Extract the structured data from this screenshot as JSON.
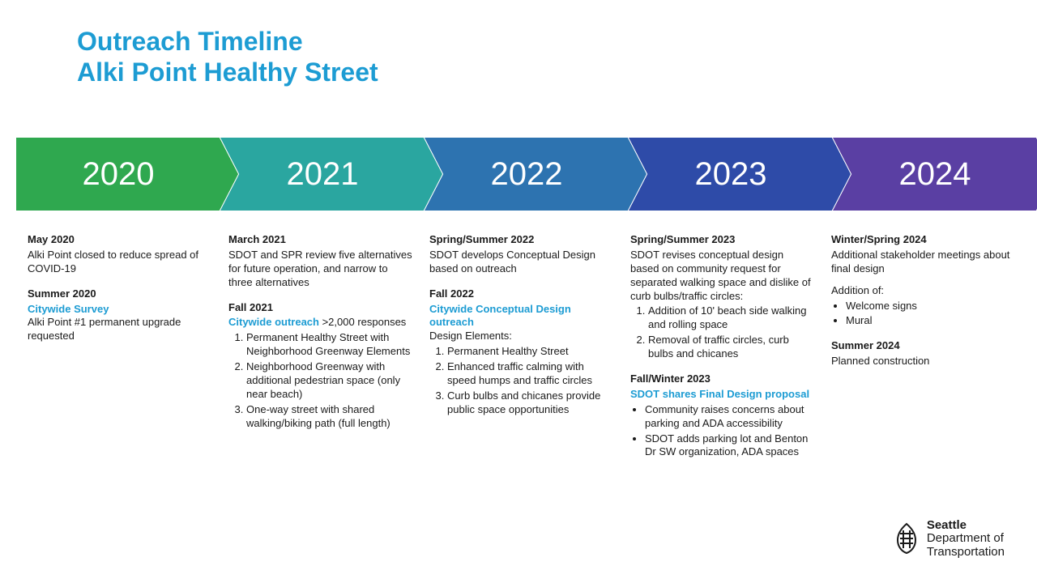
{
  "title": {
    "line1": "Outreach Timeline",
    "line2": "Alki Point Healthy Street",
    "color": "#1d9cd3",
    "fontsize": 32
  },
  "chevrons": {
    "height": 90,
    "label_fontsize": 40,
    "label_color": "#ffffff",
    "items": [
      {
        "year": "2020",
        "fill": "#2fa84f"
      },
      {
        "year": "2021",
        "fill": "#2aa6a0"
      },
      {
        "year": "2022",
        "fill": "#2d73b0"
      },
      {
        "year": "2023",
        "fill": "#2e4ba8"
      },
      {
        "year": "2024",
        "fill": "#5a3fa3"
      }
    ]
  },
  "accent_color": "#1d9cd3",
  "text_color": "#1a1a1a",
  "body_fontsize": 13,
  "columns": [
    {
      "events": [
        {
          "head": "May 2020",
          "body": "Alki Point closed to reduce spread of COVID-19"
        },
        {
          "head": "Summer 2020",
          "sub": "Citywide Survey",
          "body": "Alki Point #1 permanent upgrade requested"
        }
      ]
    },
    {
      "events": [
        {
          "head": "March 2021",
          "body": "SDOT and SPR review five alternatives for future operation, and narrow to three alternatives"
        },
        {
          "head": "Fall 2021",
          "sub_inline": "Citywide outreach",
          "body_inline": " >2,000 responses",
          "ol": [
            "Permanent Healthy Street with Neighborhood Greenway Elements",
            "Neighborhood Greenway with additional pedestrian space (only near beach)",
            "One-way street with shared walking/biking path (full length)"
          ]
        }
      ]
    },
    {
      "events": [
        {
          "head": "Spring/Summer 2022",
          "body": "SDOT develops Conceptual Design based on outreach"
        },
        {
          "head": "Fall 2022",
          "sub": "Citywide Conceptual Design outreach",
          "body": "Design Elements:",
          "ol": [
            "Permanent Healthy Street",
            "Enhanced traffic calming with speed humps and traffic circles",
            "Curb bulbs and chicanes provide public space opportunities"
          ]
        }
      ]
    },
    {
      "events": [
        {
          "head": "Spring/Summer 2023",
          "body": "SDOT revises conceptual design based on community request for separated walking space and dislike of curb bulbs/traffic circles:",
          "ol": [
            "Addition of 10' beach side walking and rolling space",
            "Removal of traffic circles, curb bulbs and chicanes"
          ]
        },
        {
          "head": "Fall/Winter 2023",
          "sub": "SDOT shares Final Design proposal",
          "ul": [
            "Community raises concerns about parking and ADA accessibility",
            "SDOT adds parking lot and Benton Dr SW organization, ADA spaces"
          ]
        }
      ]
    },
    {
      "events": [
        {
          "head": "Winter/Spring 2024",
          "body": "Additional stakeholder meetings about final design",
          "body2": "Addition of:",
          "ul": [
            "Welcome signs",
            "Mural"
          ]
        },
        {
          "head": "Summer 2024",
          "body": "Planned construction"
        }
      ]
    }
  ],
  "logo": {
    "line1_bold": "Seattle",
    "line2": "Department of",
    "line3": "Transportation"
  }
}
